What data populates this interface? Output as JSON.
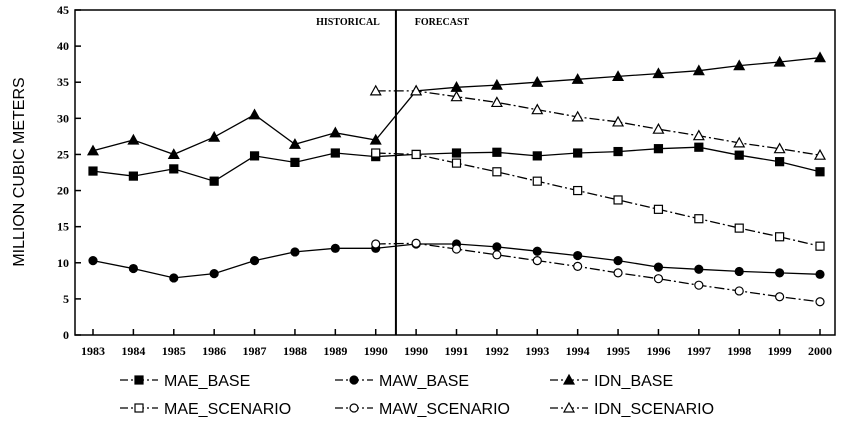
{
  "chart_data": {
    "type": "line",
    "ylabel": "MILLION CUBIC METERS",
    "xlabel": "",
    "ylim": [
      0,
      45
    ],
    "yticks": [
      0,
      5,
      10,
      15,
      20,
      25,
      30,
      35,
      40,
      45
    ],
    "categories": [
      "1983",
      "1984",
      "1985",
      "1986",
      "1987",
      "1988",
      "1989",
      "1990",
      "1990",
      "1991",
      "1992",
      "1993",
      "1994",
      "1995",
      "1996",
      "1997",
      "1998",
      "1999",
      "2000"
    ],
    "annotations": {
      "historical": "HISTORICAL",
      "forecast": "FORECAST"
    },
    "grid": false,
    "legend_position": "bottom",
    "series": [
      {
        "name": "MAE_BASE",
        "marker": "square-filled",
        "dash": "dash-dot",
        "values": [
          22.7,
          22.0,
          23.0,
          21.3,
          24.8,
          23.9,
          25.2,
          24.7,
          25.0,
          25.2,
          25.3,
          24.8,
          25.2,
          25.4,
          25.8,
          26.0,
          24.9,
          24.0,
          22.6
        ]
      },
      {
        "name": "MAW_BASE",
        "marker": "circle-filled",
        "dash": "dash-dot",
        "values": [
          10.3,
          9.2,
          7.9,
          8.5,
          10.3,
          11.5,
          12.0,
          12.0,
          12.6,
          12.6,
          12.2,
          11.6,
          11.0,
          10.3,
          9.4,
          9.1,
          8.8,
          8.6,
          8.4
        ]
      },
      {
        "name": "IDN_BASE",
        "marker": "triangle-filled",
        "dash": "dash-dot",
        "values": [
          25.5,
          27.0,
          25.0,
          27.4,
          30.5,
          26.4,
          28.0,
          27.0,
          33.8,
          34.3,
          34.6,
          35.0,
          35.4,
          35.8,
          36.2,
          36.6,
          37.3,
          37.8,
          38.4
        ]
      },
      {
        "name": "MAE_SCENARIO",
        "marker": "square-open",
        "dash": "dash-dot",
        "values": [
          null,
          null,
          null,
          null,
          null,
          null,
          null,
          25.2,
          25.0,
          23.8,
          22.6,
          21.3,
          20.0,
          18.7,
          17.4,
          16.1,
          14.8,
          13.6,
          12.3
        ]
      },
      {
        "name": "MAW_SCENARIO",
        "marker": "circle-open",
        "dash": "dash-dot",
        "values": [
          null,
          null,
          null,
          null,
          null,
          null,
          null,
          12.6,
          12.7,
          11.9,
          11.1,
          10.3,
          9.5,
          8.6,
          7.8,
          6.9,
          6.1,
          5.3,
          4.6
        ]
      },
      {
        "name": "IDN_SCENARIO",
        "marker": "triangle-open",
        "dash": "dash-dot",
        "values": [
          null,
          null,
          null,
          null,
          null,
          null,
          null,
          33.8,
          33.8,
          33.0,
          32.2,
          31.2,
          30.2,
          29.5,
          28.5,
          27.6,
          26.6,
          25.8,
          24.9
        ]
      }
    ]
  }
}
